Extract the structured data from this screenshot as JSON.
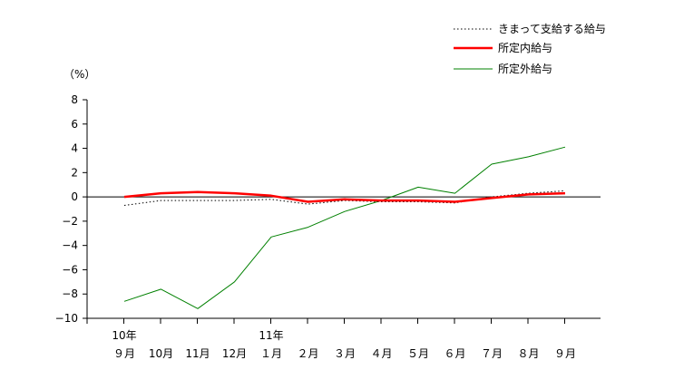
{
  "chart_data": {
    "type": "line",
    "ylabel": "（%）",
    "ylim": [
      -10,
      8
    ],
    "yticks": [
      -10,
      -8,
      -6,
      -4,
      -2,
      0,
      2,
      4,
      6,
      8
    ],
    "categories": [
      {
        "year": "10年",
        "month": "９月"
      },
      {
        "year": "",
        "month": "10月"
      },
      {
        "year": "",
        "month": "11月"
      },
      {
        "year": "",
        "month": "12月"
      },
      {
        "year": "11年",
        "month": "１月"
      },
      {
        "year": "",
        "month": "２月"
      },
      {
        "year": "",
        "month": "３月"
      },
      {
        "year": "",
        "month": "４月"
      },
      {
        "year": "",
        "month": "５月"
      },
      {
        "year": "",
        "month": "６月"
      },
      {
        "year": "",
        "month": "７月"
      },
      {
        "year": "",
        "month": "８月"
      },
      {
        "year": "",
        "month": "９月"
      }
    ],
    "legend_position": "top-right",
    "series": [
      {
        "name": "きまって支給する給与",
        "color": "#000000",
        "style": "dotted",
        "values": [
          -0.7,
          -0.3,
          -0.3,
          -0.3,
          -0.2,
          -0.6,
          -0.3,
          -0.4,
          -0.4,
          -0.5,
          0.0,
          0.3,
          0.5
        ]
      },
      {
        "name": "所定内給与",
        "color": "#ff0000",
        "style": "solid-thick",
        "values": [
          0.0,
          0.3,
          0.4,
          0.3,
          0.1,
          -0.4,
          -0.2,
          -0.3,
          -0.3,
          -0.4,
          -0.1,
          0.2,
          0.3
        ]
      },
      {
        "name": "所定外給与",
        "color": "#008000",
        "style": "solid",
        "values": [
          -8.6,
          -7.6,
          -9.2,
          -7.0,
          -3.3,
          -2.5,
          -1.2,
          -0.3,
          0.8,
          0.3,
          2.7,
          3.3,
          4.1
        ]
      }
    ]
  }
}
